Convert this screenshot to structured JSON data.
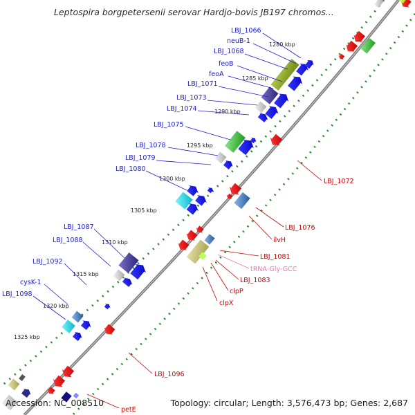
{
  "title": "Leptospira borgpetersenii serovar Hardjo-bovis JB197 chromos...",
  "footer": {
    "accession": "Accession: NC_008510",
    "topology": "Topology: circular; Length: 3,576,473 bp; Genes: 2,687"
  },
  "ticks": [
    "1280 kbp",
    "1285 kbp",
    "1290 kbp",
    "1295 kbp",
    "1300 kbp",
    "1305 kbp",
    "1310 kbp",
    "1315 kbp",
    "1320 kbp",
    "1325 kbp"
  ],
  "labels_left": [
    "LBJ_1066",
    "neuB-1",
    "LBJ_1068",
    "feoB",
    "feoA",
    "LBJ_1071",
    "LBJ_1073",
    "LBJ_1074",
    "LBJ_1075",
    "LBJ_1078",
    "LBJ_1079",
    "LBJ_1080",
    "LBJ_1087",
    "LBJ_1088",
    "LBJ_1092",
    "cysK-1",
    "LBJ_1098"
  ],
  "labels_right": [
    "LBJ_1072",
    "LBJ_1076",
    "ilvH",
    "LBJ_1081",
    "tRNA-Gly-GCC",
    "LBJ_1083",
    "clpP",
    "clpX",
    "LBJ_1096",
    "petE"
  ],
  "colors": {
    "backbone": "#8a8a8a",
    "dots": "#2e8b2e",
    "label_blue": "#1a1ad0",
    "label_red": "#cc0000",
    "label_pink": "#e07cb0",
    "gene_blue": "#0a0ae6",
    "gene_red": "#e8111a",
    "gene_olive": "#8aa029",
    "gene_purple": "#4b3f9e",
    "gene_cyan": "#16d3e0",
    "gene_green": "#3cb83c",
    "gene_steel": "#3a7bbf",
    "gene_khaki": "#c8c27a",
    "gene_gray": "#c8c8c8"
  }
}
